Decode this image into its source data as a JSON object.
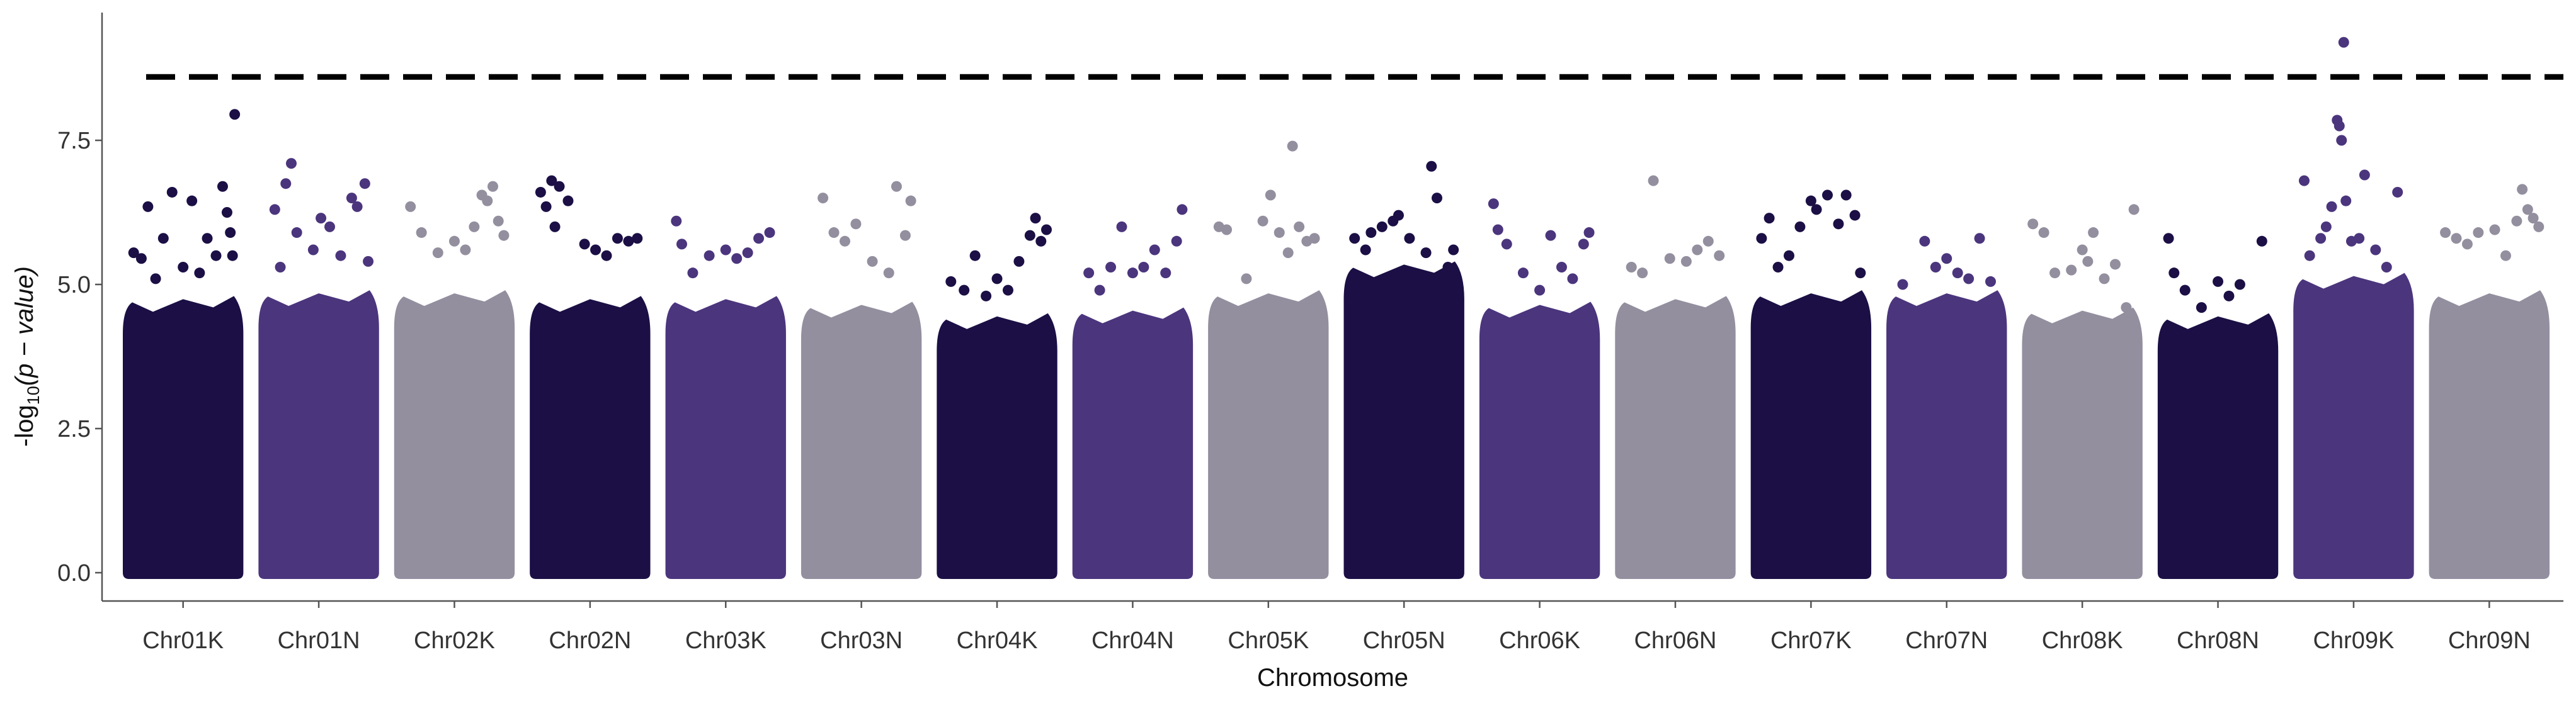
{
  "chart_data": {
    "type": "scatter",
    "subtype": "manhattan",
    "title": "",
    "xlabel": "Chromosome",
    "ylabel": {
      "prefix": "-log",
      "subscript": "10",
      "body": "(p − value)"
    },
    "ylim": [
      0,
      9.3
    ],
    "yticks": [
      0.0,
      2.5,
      5.0,
      7.5
    ],
    "ytick_labels": [
      "0.0",
      "2.5",
      "5.0",
      "7.5"
    ],
    "threshold": {
      "value": 8.6,
      "style": "dashed",
      "color": "#000000"
    },
    "palette": [
      "#1b0f45",
      "#4b357d",
      "#938f9f"
    ],
    "grid": false,
    "legend": "none",
    "categories": [
      "Chr01K",
      "Chr01N",
      "Chr02K",
      "Chr02N",
      "Chr03K",
      "Chr03N",
      "Chr04K",
      "Chr04N",
      "Chr05K",
      "Chr05N",
      "Chr06K",
      "Chr06N",
      "Chr07K",
      "Chr07N",
      "Chr08K",
      "Chr08N",
      "Chr09K",
      "Chr09N"
    ],
    "chromosomes": [
      {
        "name": "Chr01K",
        "color_index": 0,
        "bulk_max": 4.8,
        "peaks": [
          [
            0.05,
            5.55
          ],
          [
            0.12,
            5.45
          ],
          [
            0.18,
            6.35
          ],
          [
            0.25,
            5.1
          ],
          [
            0.32,
            5.8
          ],
          [
            0.4,
            6.6
          ],
          [
            0.5,
            5.3
          ],
          [
            0.58,
            6.45
          ],
          [
            0.65,
            5.2
          ],
          [
            0.72,
            5.8
          ],
          [
            0.8,
            5.5
          ],
          [
            0.86,
            6.7
          ],
          [
            0.9,
            6.25
          ],
          [
            0.93,
            5.9
          ],
          [
            0.95,
            5.5
          ],
          [
            0.97,
            7.95
          ]
        ]
      },
      {
        "name": "Chr01N",
        "color_index": 1,
        "bulk_max": 4.9,
        "peaks": [
          [
            0.1,
            6.3
          ],
          [
            0.15,
            5.3
          ],
          [
            0.2,
            6.75
          ],
          [
            0.25,
            7.1
          ],
          [
            0.3,
            5.9
          ],
          [
            0.45,
            5.6
          ],
          [
            0.52,
            6.15
          ],
          [
            0.6,
            6.0
          ],
          [
            0.7,
            5.5
          ],
          [
            0.8,
            6.5
          ],
          [
            0.85,
            6.35
          ],
          [
            0.92,
            6.75
          ],
          [
            0.95,
            5.4
          ]
        ]
      },
      {
        "name": "Chr02K",
        "color_index": 2,
        "bulk_max": 4.9,
        "peaks": [
          [
            0.1,
            6.35
          ],
          [
            0.2,
            5.9
          ],
          [
            0.35,
            5.55
          ],
          [
            0.5,
            5.75
          ],
          [
            0.6,
            5.6
          ],
          [
            0.68,
            6.0
          ],
          [
            0.75,
            6.55
          ],
          [
            0.8,
            6.45
          ],
          [
            0.85,
            6.7
          ],
          [
            0.9,
            6.1
          ],
          [
            0.95,
            5.85
          ]
        ]
      },
      {
        "name": "Chr02N",
        "color_index": 0,
        "bulk_max": 4.8,
        "peaks": [
          [
            0.05,
            6.6
          ],
          [
            0.1,
            6.35
          ],
          [
            0.15,
            6.8
          ],
          [
            0.18,
            6.0
          ],
          [
            0.22,
            6.7
          ],
          [
            0.3,
            6.45
          ],
          [
            0.45,
            5.7
          ],
          [
            0.55,
            5.6
          ],
          [
            0.65,
            5.5
          ],
          [
            0.75,
            5.8
          ],
          [
            0.85,
            5.75
          ],
          [
            0.93,
            5.8
          ]
        ]
      },
      {
        "name": "Chr03K",
        "color_index": 1,
        "bulk_max": 4.8,
        "peaks": [
          [
            0.05,
            6.1
          ],
          [
            0.1,
            5.7
          ],
          [
            0.2,
            5.2
          ],
          [
            0.35,
            5.5
          ],
          [
            0.5,
            5.6
          ],
          [
            0.6,
            5.45
          ],
          [
            0.7,
            5.55
          ],
          [
            0.8,
            5.8
          ],
          [
            0.9,
            5.9
          ]
        ]
      },
      {
        "name": "Chr03N",
        "color_index": 2,
        "bulk_max": 4.7,
        "peaks": [
          [
            0.15,
            6.5
          ],
          [
            0.25,
            5.9
          ],
          [
            0.35,
            5.75
          ],
          [
            0.45,
            6.05
          ],
          [
            0.6,
            5.4
          ],
          [
            0.75,
            5.2
          ],
          [
            0.82,
            6.7
          ],
          [
            0.9,
            5.85
          ],
          [
            0.95,
            6.45
          ]
        ]
      },
      {
        "name": "Chr04K",
        "color_index": 0,
        "bulk_max": 4.5,
        "peaks": [
          [
            0.08,
            5.05
          ],
          [
            0.2,
            4.9
          ],
          [
            0.3,
            5.5
          ],
          [
            0.4,
            4.8
          ],
          [
            0.5,
            5.1
          ],
          [
            0.6,
            4.9
          ],
          [
            0.7,
            5.4
          ],
          [
            0.8,
            5.85
          ],
          [
            0.85,
            6.15
          ],
          [
            0.9,
            5.75
          ],
          [
            0.95,
            5.95
          ]
        ]
      },
      {
        "name": "Chr04N",
        "color_index": 1,
        "bulk_max": 4.6,
        "peaks": [
          [
            0.1,
            5.2
          ],
          [
            0.2,
            4.9
          ],
          [
            0.3,
            5.3
          ],
          [
            0.4,
            6.0
          ],
          [
            0.5,
            5.2
          ],
          [
            0.6,
            5.3
          ],
          [
            0.7,
            5.6
          ],
          [
            0.8,
            5.2
          ],
          [
            0.9,
            5.75
          ],
          [
            0.95,
            6.3
          ]
        ]
      },
      {
        "name": "Chr05K",
        "color_index": 2,
        "bulk_max": 4.9,
        "peaks": [
          [
            0.05,
            6.0
          ],
          [
            0.12,
            5.95
          ],
          [
            0.3,
            5.1
          ],
          [
            0.45,
            6.1
          ],
          [
            0.52,
            6.55
          ],
          [
            0.6,
            5.9
          ],
          [
            0.68,
            5.55
          ],
          [
            0.72,
            7.4
          ],
          [
            0.78,
            6.0
          ],
          [
            0.85,
            5.75
          ],
          [
            0.92,
            5.8
          ]
        ]
      },
      {
        "name": "Chr05N",
        "color_index": 0,
        "bulk_max": 5.4,
        "peaks": [
          [
            0.05,
            5.8
          ],
          [
            0.15,
            5.6
          ],
          [
            0.2,
            5.9
          ],
          [
            0.3,
            6.0
          ],
          [
            0.4,
            6.1
          ],
          [
            0.45,
            6.2
          ],
          [
            0.55,
            5.8
          ],
          [
            0.7,
            5.55
          ],
          [
            0.75,
            7.05
          ],
          [
            0.8,
            6.5
          ],
          [
            0.9,
            5.3
          ],
          [
            0.95,
            5.6
          ]
        ]
      },
      {
        "name": "Chr06K",
        "color_index": 1,
        "bulk_max": 4.7,
        "peaks": [
          [
            0.08,
            6.4
          ],
          [
            0.12,
            5.95
          ],
          [
            0.2,
            5.7
          ],
          [
            0.35,
            5.2
          ],
          [
            0.5,
            4.9
          ],
          [
            0.6,
            5.85
          ],
          [
            0.7,
            5.3
          ],
          [
            0.8,
            5.1
          ],
          [
            0.9,
            5.7
          ],
          [
            0.95,
            5.9
          ]
        ]
      },
      {
        "name": "Chr06N",
        "color_index": 2,
        "bulk_max": 4.8,
        "peaks": [
          [
            0.1,
            5.3
          ],
          [
            0.2,
            5.2
          ],
          [
            0.3,
            6.8
          ],
          [
            0.45,
            5.45
          ],
          [
            0.6,
            5.4
          ],
          [
            0.7,
            5.6
          ],
          [
            0.8,
            5.75
          ],
          [
            0.9,
            5.5
          ]
        ]
      },
      {
        "name": "Chr07K",
        "color_index": 0,
        "bulk_max": 4.9,
        "peaks": [
          [
            0.05,
            5.8
          ],
          [
            0.12,
            6.15
          ],
          [
            0.2,
            5.3
          ],
          [
            0.3,
            5.5
          ],
          [
            0.4,
            6.0
          ],
          [
            0.5,
            6.45
          ],
          [
            0.55,
            6.3
          ],
          [
            0.65,
            6.55
          ],
          [
            0.75,
            6.05
          ],
          [
            0.82,
            6.55
          ],
          [
            0.9,
            6.2
          ],
          [
            0.95,
            5.2
          ]
        ]
      },
      {
        "name": "Chr07N",
        "color_index": 1,
        "bulk_max": 4.9,
        "peaks": [
          [
            0.1,
            5.0
          ],
          [
            0.3,
            5.75
          ],
          [
            0.4,
            5.3
          ],
          [
            0.5,
            5.45
          ],
          [
            0.6,
            5.2
          ],
          [
            0.7,
            5.1
          ],
          [
            0.8,
            5.8
          ],
          [
            0.9,
            5.05
          ]
        ]
      },
      {
        "name": "Chr08K",
        "color_index": 2,
        "bulk_max": 4.6,
        "peaks": [
          [
            0.05,
            6.05
          ],
          [
            0.15,
            5.9
          ],
          [
            0.25,
            5.2
          ],
          [
            0.4,
            5.25
          ],
          [
            0.5,
            5.6
          ],
          [
            0.55,
            5.4
          ],
          [
            0.6,
            5.9
          ],
          [
            0.7,
            5.1
          ],
          [
            0.8,
            5.35
          ],
          [
            0.9,
            4.6
          ],
          [
            0.97,
            6.3
          ]
        ]
      },
      {
        "name": "Chr08N",
        "color_index": 0,
        "bulk_max": 4.5,
        "peaks": [
          [
            0.05,
            5.8
          ],
          [
            0.1,
            5.2
          ],
          [
            0.2,
            4.9
          ],
          [
            0.35,
            4.6
          ],
          [
            0.5,
            5.05
          ],
          [
            0.6,
            4.8
          ],
          [
            0.7,
            5.0
          ],
          [
            0.9,
            5.75
          ]
        ]
      },
      {
        "name": "Chr09K",
        "color_index": 1,
        "bulk_max": 5.2,
        "peaks": [
          [
            0.05,
            6.8
          ],
          [
            0.1,
            5.5
          ],
          [
            0.2,
            5.8
          ],
          [
            0.25,
            6.0
          ],
          [
            0.3,
            6.35
          ],
          [
            0.35,
            7.85
          ],
          [
            0.37,
            7.75
          ],
          [
            0.39,
            7.5
          ],
          [
            0.41,
            9.2
          ],
          [
            0.43,
            6.45
          ],
          [
            0.48,
            5.75
          ],
          [
            0.55,
            5.8
          ],
          [
            0.6,
            6.9
          ],
          [
            0.7,
            5.6
          ],
          [
            0.8,
            5.3
          ],
          [
            0.9,
            6.6
          ]
        ]
      },
      {
        "name": "Chr09N",
        "color_index": 2,
        "bulk_max": 4.9,
        "peaks": [
          [
            0.1,
            5.9
          ],
          [
            0.2,
            5.8
          ],
          [
            0.3,
            5.7
          ],
          [
            0.4,
            5.9
          ],
          [
            0.55,
            5.95
          ],
          [
            0.65,
            5.5
          ],
          [
            0.75,
            6.1
          ],
          [
            0.8,
            6.65
          ],
          [
            0.85,
            6.3
          ],
          [
            0.9,
            6.15
          ],
          [
            0.95,
            6.0
          ]
        ]
      }
    ]
  }
}
